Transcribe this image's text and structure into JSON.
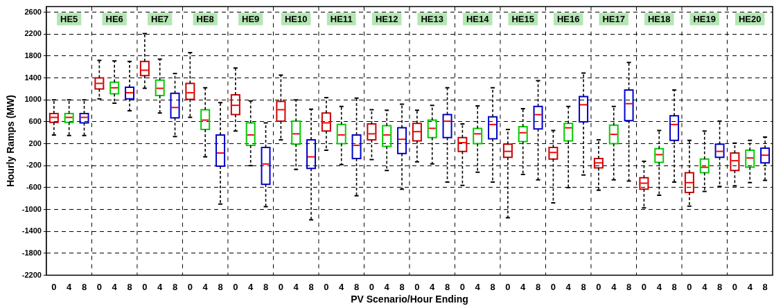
{
  "chart_data": {
    "type": "box",
    "xlabel": "PV Scenario/Hour Ending",
    "ylabel": "Hourly Ramps (MW)",
    "categories": [
      "0",
      "4",
      "8",
      "0",
      "4",
      "8",
      "0",
      "4",
      "8",
      "0",
      "4",
      "8",
      "0",
      "4",
      "8",
      "0",
      "4",
      "8",
      "0",
      "4",
      "8",
      "0",
      "4",
      "8",
      "0",
      "4",
      "8",
      "0",
      "4",
      "8",
      "0",
      "4",
      "8",
      "0",
      "4",
      "8",
      "0",
      "4",
      "8",
      "0",
      "4",
      "8",
      "0",
      "4",
      "8",
      "0",
      "4",
      "8"
    ],
    "colors": [
      "#cc0000",
      "#00cc00",
      "#0000cc",
      "#cc0000",
      "#00cc00",
      "#0000cc",
      "#cc0000",
      "#00cc00",
      "#0000cc",
      "#cc0000",
      "#00cc00",
      "#0000cc",
      "#cc0000",
      "#00cc00",
      "#0000cc",
      "#cc0000",
      "#00cc00",
      "#0000cc",
      "#cc0000",
      "#00cc00",
      "#0000cc",
      "#cc0000",
      "#00cc00",
      "#0000cc",
      "#cc0000",
      "#00cc00",
      "#0000cc",
      "#cc0000",
      "#00cc00",
      "#0000cc",
      "#cc0000",
      "#00cc00",
      "#0000cc",
      "#cc0000",
      "#00cc00",
      "#0000cc",
      "#cc0000",
      "#00cc00",
      "#0000cc",
      "#cc0000",
      "#00cc00",
      "#0000cc",
      "#cc0000",
      "#00cc00",
      "#0000cc",
      "#cc0000",
      "#00cc00",
      "#0000cc"
    ],
    "boxes": [
      {
        "low": 360,
        "q1": 590,
        "median": 680,
        "q3": 750,
        "high": 1000
      },
      {
        "low": 350,
        "q1": 590,
        "median": 680,
        "q3": 750,
        "high": 1000
      },
      {
        "low": 350,
        "q1": 580,
        "median": 680,
        "q3": 750,
        "high": 1000
      },
      {
        "low": 1020,
        "q1": 1200,
        "median": 1300,
        "q3": 1400,
        "high": 1720
      },
      {
        "low": 940,
        "q1": 1110,
        "median": 1220,
        "q3": 1320,
        "high": 1710
      },
      {
        "low": 800,
        "q1": 1020,
        "median": 1130,
        "q3": 1230,
        "high": 1700
      },
      {
        "low": 1210,
        "q1": 1440,
        "median": 1540,
        "q3": 1700,
        "high": 2210
      },
      {
        "low": 760,
        "q1": 1080,
        "median": 1210,
        "q3": 1360,
        "high": 1740
      },
      {
        "low": 330,
        "q1": 670,
        "median": 860,
        "q3": 1120,
        "high": 1480
      },
      {
        "low": 680,
        "q1": 1010,
        "median": 1130,
        "q3": 1300,
        "high": 1860
      },
      {
        "low": -40,
        "q1": 460,
        "median": 630,
        "q3": 820,
        "high": 1220
      },
      {
        "low": -900,
        "q1": -210,
        "median": 30,
        "q3": 360,
        "high": 950
      },
      {
        "low": 430,
        "q1": 730,
        "median": 900,
        "q3": 1090,
        "high": 1580
      },
      {
        "low": -200,
        "q1": 170,
        "median": 360,
        "q3": 580,
        "high": 980
      },
      {
        "low": -950,
        "q1": -540,
        "median": -170,
        "q3": 130,
        "high": 580
      },
      {
        "low": 270,
        "q1": 610,
        "median": 820,
        "q3": 970,
        "high": 1450
      },
      {
        "low": -270,
        "q1": 190,
        "median": 380,
        "q3": 610,
        "high": 1000
      },
      {
        "low": -1190,
        "q1": -250,
        "median": -40,
        "q3": 270,
        "high": 830
      },
      {
        "low": 80,
        "q1": 430,
        "median": 580,
        "q3": 760,
        "high": 1040
      },
      {
        "low": -180,
        "q1": 200,
        "median": 360,
        "q3": 550,
        "high": 880
      },
      {
        "low": -750,
        "q1": -70,
        "median": 170,
        "q3": 360,
        "high": 1030
      },
      {
        "low": -90,
        "q1": 270,
        "median": 380,
        "q3": 560,
        "high": 820
      },
      {
        "low": -290,
        "q1": 150,
        "median": 360,
        "q3": 530,
        "high": 810
      },
      {
        "low": -630,
        "q1": 20,
        "median": 280,
        "q3": 490,
        "high": 920
      },
      {
        "low": -130,
        "q1": 250,
        "median": 420,
        "q3": 570,
        "high": 810
      },
      {
        "low": -170,
        "q1": 310,
        "median": 480,
        "q3": 630,
        "high": 900
      },
      {
        "low": -500,
        "q1": 310,
        "median": 610,
        "q3": 730,
        "high": 1220
      },
      {
        "low": -560,
        "q1": 60,
        "median": 220,
        "q3": 310,
        "high": 560
      },
      {
        "low": -320,
        "q1": 200,
        "median": 380,
        "q3": 480,
        "high": 890
      },
      {
        "low": -500,
        "q1": 290,
        "median": 550,
        "q3": 690,
        "high": 1220
      },
      {
        "low": -1150,
        "q1": -50,
        "median": 60,
        "q3": 190,
        "high": 460
      },
      {
        "low": -360,
        "q1": 240,
        "median": 400,
        "q3": 510,
        "high": 840
      },
      {
        "low": -460,
        "q1": 470,
        "median": 730,
        "q3": 880,
        "high": 1350
      },
      {
        "low": -880,
        "q1": -80,
        "median": 40,
        "q3": 130,
        "high": 440
      },
      {
        "low": -600,
        "q1": 250,
        "median": 490,
        "q3": 570,
        "high": 880
      },
      {
        "low": -370,
        "q1": 600,
        "median": 910,
        "q3": 1060,
        "high": 1490
      },
      {
        "low": -650,
        "q1": -240,
        "median": -150,
        "q3": -70,
        "high": 270
      },
      {
        "low": -460,
        "q1": 200,
        "median": 370,
        "q3": 540,
        "high": 880
      },
      {
        "low": -480,
        "q1": 620,
        "median": 930,
        "q3": 1180,
        "high": 1680
      },
      {
        "low": -970,
        "q1": -630,
        "median": -520,
        "q3": -420,
        "high": -120
      },
      {
        "low": -740,
        "q1": -140,
        "median": 0,
        "q3": 110,
        "high": 440
      },
      {
        "low": -500,
        "q1": 260,
        "median": 550,
        "q3": 710,
        "high": 1180
      },
      {
        "low": -940,
        "q1": -690,
        "median": -510,
        "q3": -330,
        "high": 260
      },
      {
        "low": -670,
        "q1": -330,
        "median": -230,
        "q3": -80,
        "high": 430
      },
      {
        "low": -580,
        "q1": -50,
        "median": 60,
        "q3": 190,
        "high": 610
      },
      {
        "low": -570,
        "q1": -290,
        "median": -110,
        "q3": 30,
        "high": 210
      },
      {
        "low": -510,
        "q1": -230,
        "median": -60,
        "q3": 80,
        "high": 260
      },
      {
        "low": -470,
        "q1": -150,
        "median": -10,
        "q3": 120,
        "high": 320
      }
    ],
    "ylim": [
      -2200,
      2700
    ],
    "yticks": [
      -2200,
      -1800,
      -1400,
      -1000,
      -600,
      -200,
      200,
      600,
      1000,
      1400,
      1800,
      2200,
      2600
    ],
    "grid": true,
    "legend": false,
    "annotations": [
      "HE5",
      "HE6",
      "HE7",
      "HE8",
      "HE9",
      "HE10",
      "HE11",
      "HE12",
      "HE13",
      "HE14",
      "HE15",
      "HE16",
      "HE17",
      "HE18",
      "HE19",
      "HE20"
    ]
  }
}
